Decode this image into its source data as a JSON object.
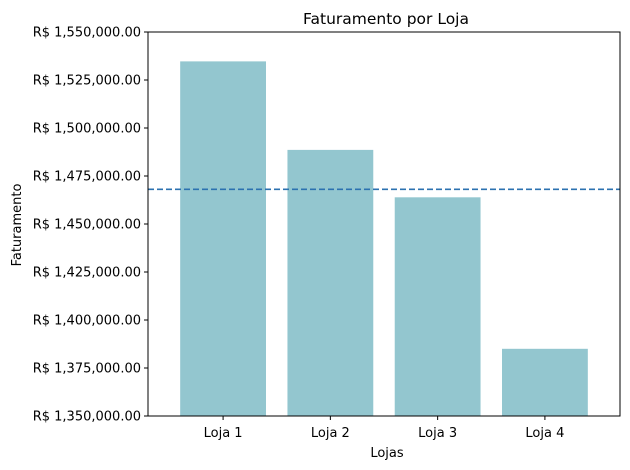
{
  "chart_data": {
    "type": "bar",
    "title": "Faturamento por Loja",
    "xlabel": "Lojas",
    "ylabel": "Faturamento",
    "categories": [
      "Loja 1",
      "Loja 2",
      "Loja 3",
      "Loja 4"
    ],
    "values": [
      1534700,
      1488600,
      1463900,
      1385000
    ],
    "ylim": [
      1350000,
      1550000
    ],
    "yticks": [
      1350000,
      1375000,
      1400000,
      1425000,
      1450000,
      1475000,
      1500000,
      1525000,
      1550000
    ],
    "ytick_labels": [
      "R$ 1,350,000.00",
      "R$ 1,375,000.00",
      "R$ 1,400,000.00",
      "R$ 1,425,000.00",
      "R$ 1,450,000.00",
      "R$ 1,475,000.00",
      "R$ 1,500,000.00",
      "R$ 1,525,000.00",
      "R$ 1,550,000.00"
    ],
    "reference_line": {
      "value": 1468050,
      "style": "dashed"
    },
    "grid": false,
    "colors": {
      "bar": "#93c6cf",
      "reference_line": "#2c72b0",
      "axis": "#000000"
    }
  }
}
